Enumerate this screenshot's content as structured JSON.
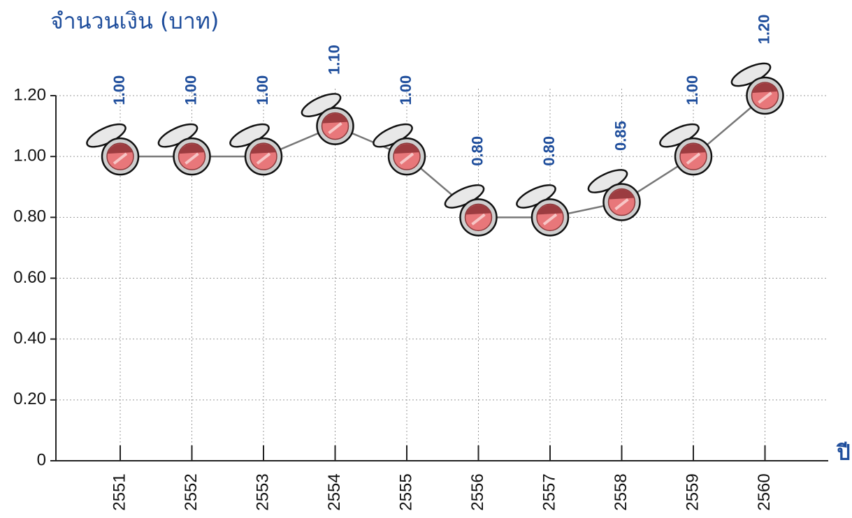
{
  "chart_data": {
    "type": "line",
    "y_axis_label": "จำนวนเงิน (บาท)",
    "x_axis_label": "ปี",
    "categories": [
      "2551",
      "2552",
      "2553",
      "2554",
      "2555",
      "2556",
      "2557",
      "2558",
      "2559",
      "2560"
    ],
    "values": [
      1.0,
      1.0,
      1.0,
      1.1,
      1.0,
      0.8,
      0.8,
      0.85,
      1.0,
      1.2
    ],
    "value_labels": [
      "1.00",
      "1.00",
      "1.00",
      "1.10",
      "1.00",
      "0.80",
      "0.80",
      "0.85",
      "1.00",
      "1.20"
    ],
    "color": "#777777",
    "ylim": [
      0,
      1.2
    ],
    "yticks": [
      0,
      {
        "value": 0.2,
        "label": "0.20"
      },
      {
        "value": 0.4,
        "label": "0.40"
      },
      {
        "value": 0.6,
        "label": "0.60"
      },
      {
        "value": 0.8,
        "label": "0.80"
      },
      {
        "value": 1.0,
        "label": "1.00"
      },
      {
        "value": 1.2,
        "label": "1.20"
      }
    ],
    "grid": true
  }
}
